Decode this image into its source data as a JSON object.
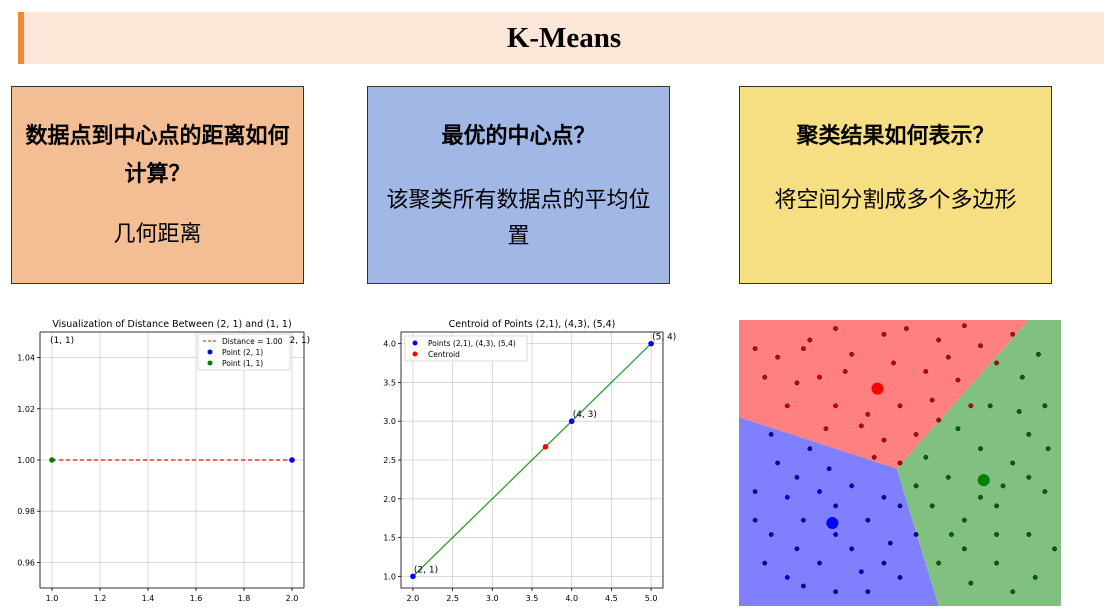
{
  "header": {
    "title": "K-Means"
  },
  "cards": [
    {
      "question": "数据点到中心点的距离如何计算？",
      "answer": "几何距离",
      "color": "#f4be94"
    },
    {
      "question": "最优的中心点？",
      "answer": "该聚类所有数据点的平均位置",
      "color": "#a1b7e5"
    },
    {
      "question": "聚类结果如何表示？",
      "answer": "将空间分割成多个多边形",
      "color": "#f6de82"
    }
  ],
  "chart_data": [
    {
      "type": "scatter",
      "title": "Visualization of Distance Between (2, 1) and (1, 1)",
      "xlim": [
        0.95,
        2.05
      ],
      "ylim": [
        0.95,
        1.05
      ],
      "x_ticks": [
        "1.0",
        "1.2",
        "1.4",
        "1.6",
        "1.8",
        "2.0"
      ],
      "y_ticks": [
        "0.96",
        "0.98",
        "1.00",
        "1.02",
        "1.04"
      ],
      "grid": true,
      "legend_position": "upper-right",
      "series": [
        {
          "name": "Distance = 1.00",
          "kind": "dashed-line",
          "color": "#ff0000",
          "points": [
            [
              1,
              1
            ],
            [
              2,
              1
            ]
          ]
        },
        {
          "name": "Point (2, 1)",
          "color": "#0000ff",
          "points": [
            [
              2,
              1
            ]
          ]
        },
        {
          "name": "Point (1, 1)",
          "color": "#008000",
          "points": [
            [
              1,
              1
            ]
          ]
        }
      ],
      "annotations": [
        {
          "text": "(1, 1)",
          "x": 1,
          "y": 1
        },
        {
          "text": "(2, 1)",
          "x": 2,
          "y": 1
        }
      ]
    },
    {
      "type": "scatter",
      "title": "Centroid of Points (2,1), (4,3), (5,4)",
      "xlim": [
        1.85,
        5.15
      ],
      "ylim": [
        0.85,
        4.15
      ],
      "x_ticks": [
        "2.0",
        "2.5",
        "3.0",
        "3.5",
        "4.0",
        "4.5",
        "5.0"
      ],
      "y_ticks": [
        "1.0",
        "1.5",
        "2.0",
        "2.5",
        "3.0",
        "3.5",
        "4.0"
      ],
      "grid": true,
      "legend_position": "upper-left",
      "series": [
        {
          "name": "Points (2,1), (4,3), (5,4)",
          "color": "#0000ff",
          "points": [
            [
              2,
              1
            ],
            [
              4,
              3
            ],
            [
              5,
              4
            ]
          ]
        },
        {
          "name": "Centroid",
          "color": "#ff0000",
          "points": [
            [
              3.67,
              2.67
            ]
          ]
        }
      ],
      "line": {
        "color": "#2ca02c",
        "points": [
          [
            2,
            1
          ],
          [
            5,
            4
          ]
        ]
      },
      "annotations": [
        {
          "text": "(2, 1)",
          "x": 2,
          "y": 1
        },
        {
          "text": "(4, 3)",
          "x": 4,
          "y": 3
        },
        {
          "text": "(5, 4)",
          "x": 5,
          "y": 4
        }
      ]
    },
    {
      "type": "scatter",
      "xlim": [
        0,
        1
      ],
      "ylim": [
        0,
        1
      ],
      "regions": [
        {
          "color": "#ff8080",
          "polygon": [
            [
              0,
              1
            ],
            [
              0.9,
              1
            ],
            [
              0.49,
              0.48
            ],
            [
              0,
              0.66
            ]
          ]
        },
        {
          "color": "#8080ff",
          "polygon": [
            [
              0,
              0.66
            ],
            [
              0.49,
              0.48
            ],
            [
              0.62,
              0
            ],
            [
              0,
              0
            ]
          ]
        },
        {
          "color": "#80c080",
          "polygon": [
            [
              0.9,
              1
            ],
            [
              1,
              1
            ],
            [
              1,
              0
            ],
            [
              0.62,
              0
            ],
            [
              0.49,
              0.48
            ]
          ]
        }
      ],
      "centroids": [
        {
          "color": "#ff0000",
          "x": 0.43,
          "y": 0.76
        },
        {
          "color": "#0000ff",
          "x": 0.29,
          "y": 0.29
        },
        {
          "color": "#008000",
          "x": 0.76,
          "y": 0.44
        }
      ],
      "clusters": [
        {
          "color": "#cc0000",
          "points": [
            [
              0.45,
              0.95
            ],
            [
              0.3,
              0.97
            ],
            [
              0.12,
              0.87
            ],
            [
              0.2,
              0.9
            ],
            [
              0.35,
              0.88
            ],
            [
              0.52,
              0.97
            ],
            [
              0.62,
              0.93
            ],
            [
              0.7,
              0.98
            ],
            [
              0.75,
              0.91
            ],
            [
              0.8,
              0.85
            ],
            [
              0.58,
              0.82
            ],
            [
              0.68,
              0.79
            ],
            [
              0.25,
              0.8
            ],
            [
              0.15,
              0.7
            ],
            [
              0.3,
              0.7
            ],
            [
              0.4,
              0.67
            ],
            [
              0.5,
              0.7
            ],
            [
              0.55,
              0.6
            ],
            [
              0.45,
              0.58
            ],
            [
              0.38,
              0.63
            ],
            [
              0.6,
              0.72
            ],
            [
              0.72,
              0.7
            ],
            [
              0.18,
              0.78
            ],
            [
              0.08,
              0.8
            ],
            [
              0.48,
              0.85
            ],
            [
              0.33,
              0.82
            ],
            [
              0.62,
              0.65
            ],
            [
              0.05,
              0.9
            ],
            [
              0.85,
              0.95
            ],
            [
              0.42,
              0.52
            ],
            [
              0.5,
              0.5
            ],
            [
              0.22,
              0.93
            ],
            [
              0.27,
              0.62
            ],
            [
              0.65,
              0.87
            ]
          ]
        },
        {
          "color": "#0000cc",
          "points": [
            [
              0.12,
              0.5
            ],
            [
              0.05,
              0.4
            ],
            [
              0.18,
              0.45
            ],
            [
              0.25,
              0.4
            ],
            [
              0.3,
              0.35
            ],
            [
              0.2,
              0.3
            ],
            [
              0.1,
              0.25
            ],
            [
              0.35,
              0.2
            ],
            [
              0.25,
              0.15
            ],
            [
              0.15,
              0.1
            ],
            [
              0.4,
              0.3
            ],
            [
              0.45,
              0.15
            ],
            [
              0.3,
              0.05
            ],
            [
              0.5,
              0.1
            ],
            [
              0.08,
              0.15
            ],
            [
              0.35,
              0.42
            ],
            [
              0.45,
              0.38
            ],
            [
              0.22,
              0.55
            ],
            [
              0.1,
              0.6
            ],
            [
              0.3,
              0.25
            ],
            [
              0.55,
              0.25
            ],
            [
              0.4,
              0.05
            ],
            [
              0.18,
              0.2
            ],
            [
              0.05,
              0.3
            ],
            [
              0.28,
              0.48
            ],
            [
              0.5,
              0.35
            ],
            [
              0.15,
              0.38
            ],
            [
              0.38,
              0.12
            ],
            [
              0.2,
              0.07
            ],
            [
              0.47,
              0.22
            ]
          ]
        },
        {
          "color": "#006600",
          "points": [
            [
              0.7,
              0.3
            ],
            [
              0.8,
              0.35
            ],
            [
              0.85,
              0.5
            ],
            [
              0.9,
              0.6
            ],
            [
              0.95,
              0.7
            ],
            [
              0.75,
              0.55
            ],
            [
              0.65,
              0.45
            ],
            [
              0.7,
              0.2
            ],
            [
              0.8,
              0.15
            ],
            [
              0.9,
              0.25
            ],
            [
              0.95,
              0.4
            ],
            [
              0.6,
              0.35
            ],
            [
              0.88,
              0.8
            ],
            [
              0.78,
              0.7
            ],
            [
              0.68,
              0.62
            ],
            [
              0.92,
              0.1
            ],
            [
              0.85,
              0.05
            ],
            [
              0.72,
              0.08
            ],
            [
              0.98,
              0.2
            ],
            [
              0.82,
              0.42
            ],
            [
              0.62,
              0.15
            ],
            [
              0.75,
              0.38
            ],
            [
              0.96,
              0.55
            ],
            [
              0.87,
              0.68
            ],
            [
              0.55,
              0.42
            ],
            [
              0.66,
              0.25
            ],
            [
              0.93,
              0.88
            ],
            [
              0.8,
              0.25
            ],
            [
              0.58,
              0.52
            ],
            [
              0.9,
              0.45
            ]
          ]
        }
      ]
    }
  ]
}
